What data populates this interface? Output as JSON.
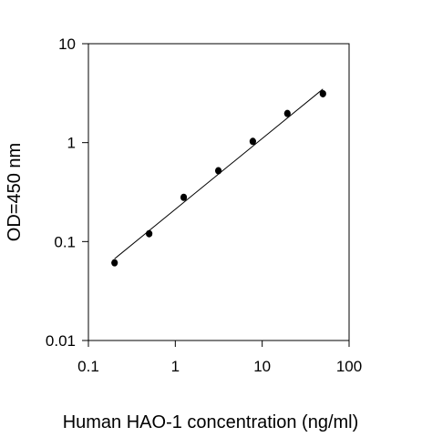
{
  "chart_data": {
    "type": "scatter",
    "title": "",
    "xlabel": "Human HAO-1 concentration (ng/ml)",
    "ylabel": "OD=450 nm",
    "x_scale": "log",
    "y_scale": "log",
    "xlim": [
      0.1,
      100
    ],
    "ylim": [
      0.01,
      10
    ],
    "x_ticks": [
      0.1,
      1,
      10,
      100
    ],
    "x_tick_labels": [
      "0.1",
      "1",
      "10",
      "100"
    ],
    "y_ticks": [
      0.01,
      0.1,
      1,
      10
    ],
    "y_tick_labels": [
      "0.01",
      "0.1",
      "1",
      "10"
    ],
    "grid": false,
    "series": [
      {
        "x": [
          0.2,
          0.5,
          1.25,
          3.13,
          7.8,
          19.5,
          50
        ],
        "y": [
          0.061,
          0.12,
          0.28,
          0.52,
          1.03,
          1.97,
          3.12
        ],
        "color": "#000000",
        "marker": "circle"
      }
    ],
    "fit_line": {
      "x": [
        0.2,
        50
      ],
      "y": [
        0.067,
        3.48
      ],
      "color": "#000000"
    }
  }
}
